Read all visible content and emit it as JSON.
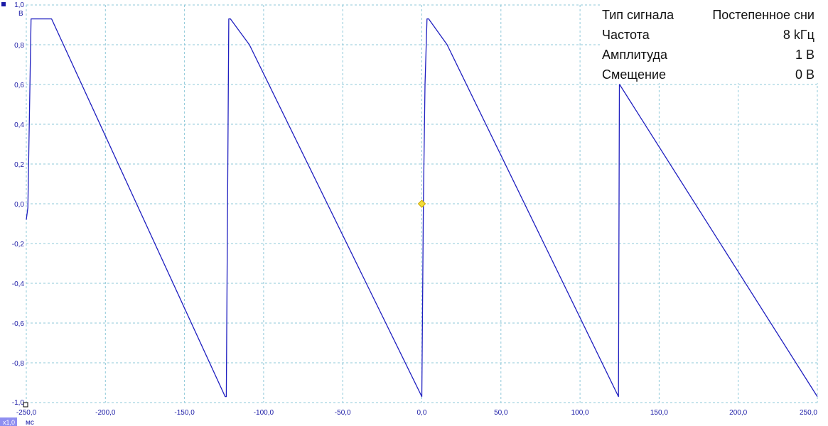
{
  "chart_data": {
    "type": "line",
    "x_unit": "мс",
    "y_unit": "В",
    "x_ticks": [
      "-250,0",
      "-200,0",
      "-150,0",
      "-100,0",
      "-50,0",
      "0,0",
      "50,0",
      "100,0",
      "150,0",
      "200,0",
      "250,0"
    ],
    "y_ticks": [
      "1,0",
      "0,8",
      "0,6",
      "0,4",
      "0,2",
      "0,0",
      "-0,2",
      "-0,4",
      "-0,6",
      "-0,8",
      "-1,0"
    ],
    "xlim": [
      -250,
      250
    ],
    "ylim": [
      -1.0,
      1.0
    ],
    "grid": true,
    "series": [
      {
        "color": "#1f1fc0",
        "x": [
          -250,
          -249,
          -247,
          -234,
          -124.3,
          -123.6,
          -122,
          -121,
          -109,
          0,
          1,
          2,
          3.3,
          4.3,
          16,
          124.3,
          124.9,
          125,
          250
        ],
        "y": [
          -0.08,
          -0.02,
          0.93,
          0.93,
          -0.97,
          -0.97,
          0.93,
          0.93,
          0.8,
          -0.97,
          0.0,
          0.6,
          0.93,
          0.93,
          0.8,
          -0.97,
          0.6,
          0.6,
          -0.97
        ]
      }
    ],
    "trigger_marker": {
      "x": 0,
      "y": 0,
      "color": "#f2dc3a"
    }
  },
  "info_panel": {
    "rows": [
      {
        "label": "Тип сигнала",
        "value": "Постепенное сни"
      },
      {
        "label": "Частота",
        "value": "8 kГц"
      },
      {
        "label": "Амплитуда",
        "value": "1 В"
      },
      {
        "label": "Смещение",
        "value": "0 В"
      }
    ]
  },
  "scale_badge": "x1,0",
  "colors": {
    "trace": "#1f1fc0",
    "axis_text": "#1a1aa6",
    "grid": "#8fc9d9",
    "badge_bg": "#8e8ef0",
    "marker": "#f2dc3a"
  }
}
